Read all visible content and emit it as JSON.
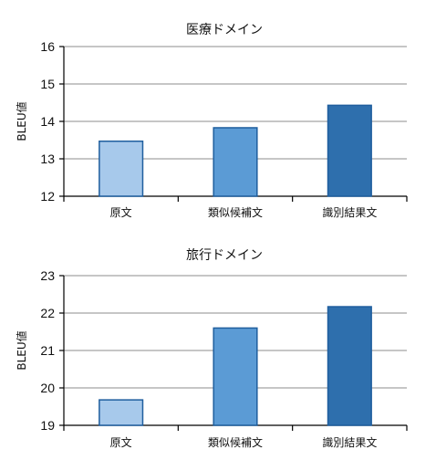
{
  "chart_data": [
    {
      "type": "bar",
      "title": "医療ドメイン",
      "ylabel": "BLEU値",
      "xlabel": "",
      "categories": [
        "原文",
        "類似候補文",
        "識別結果文"
      ],
      "values": [
        13.47,
        13.83,
        14.43
      ],
      "ylim": [
        12,
        16
      ],
      "yticks": [
        12,
        13,
        14,
        15,
        16
      ],
      "grid": true,
      "bar_colors": [
        "#a7c9eb",
        "#5b9bd5",
        "#2e6fad"
      ],
      "bar_edge_color": "#1f5e9e"
    },
    {
      "type": "bar",
      "title": "旅行ドメイン",
      "ylabel": "BLEU値",
      "xlabel": "",
      "categories": [
        "原文",
        "類似候補文",
        "識別結果文"
      ],
      "values": [
        19.68,
        21.6,
        22.17
      ],
      "ylim": [
        19,
        23
      ],
      "yticks": [
        19,
        20,
        21,
        22,
        23
      ],
      "grid": true,
      "bar_colors": [
        "#a7c9eb",
        "#5b9bd5",
        "#2e6fad"
      ],
      "bar_edge_color": "#1f5e9e"
    }
  ]
}
